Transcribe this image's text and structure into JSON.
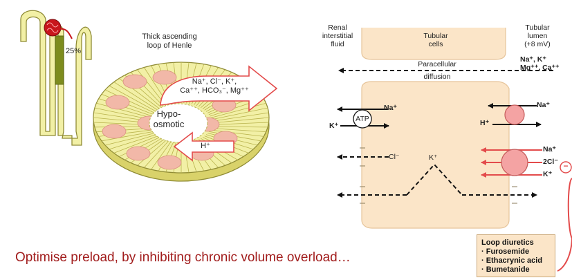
{
  "colors": {
    "nephron_fill": "#f2f0a6",
    "nephron_stroke": "#8f8b35",
    "thick_segment": "#7d8c1e",
    "glomerulus": "#c8161c",
    "cell_fill": "#fbe5c8",
    "cell_stroke": "#e6c49a",
    "nucleus": "#f2b8a8",
    "transporter": "#f4a3a3",
    "red_arrow": "#e34b4b",
    "caption_red": "#a11c1c"
  },
  "left": {
    "percent_label": "25%",
    "title_line1": "Thick ascending",
    "title_line2": "loop of Henle",
    "arrow_ions_line1": "Na⁺, Cl⁻, K⁺,",
    "arrow_ions_line2": "Ca⁺⁺, HCO₃⁻, Mg⁺⁺",
    "lumen_label_line1": "Hypo-",
    "lumen_label_line2": "osmotic",
    "proton_label": "H⁺"
  },
  "right": {
    "interstitial_line1": "Renal",
    "interstitial_line2": "interstitial",
    "interstitial_line3": "fluid",
    "cells_line1": "Tubular",
    "cells_line2": "cells",
    "lumen_line1": "Tubular",
    "lumen_line2": "lumen",
    "lumen_line3": "(+8 mV)",
    "lumen_ions_line1": "Na⁺, K⁺",
    "lumen_ions_line2": "Mg⁺⁺, Ca⁺⁺",
    "paracellular_line1": "Paracellular",
    "paracellular_line2": "diffusion",
    "atp_label": "ATP",
    "atp_na": "Na⁺",
    "atp_k": "K⁺",
    "cl_label": "Cl⁻",
    "k_middle": "K⁺",
    "exchanger_na": "Na⁺",
    "exchanger_h": "H⁺",
    "nkcc_na": "Na⁺",
    "nkcc_cl": "2Cl⁻",
    "nkcc_k": "K⁺",
    "inhibit_symbol": "−"
  },
  "caption": "Optimise preload, by inhibiting chronic volume overload…",
  "drug_box": {
    "title": "Loop diuretics",
    "items": [
      "· Furosemide",
      "· Ethacrynic acid",
      "· Bumetanide"
    ]
  }
}
